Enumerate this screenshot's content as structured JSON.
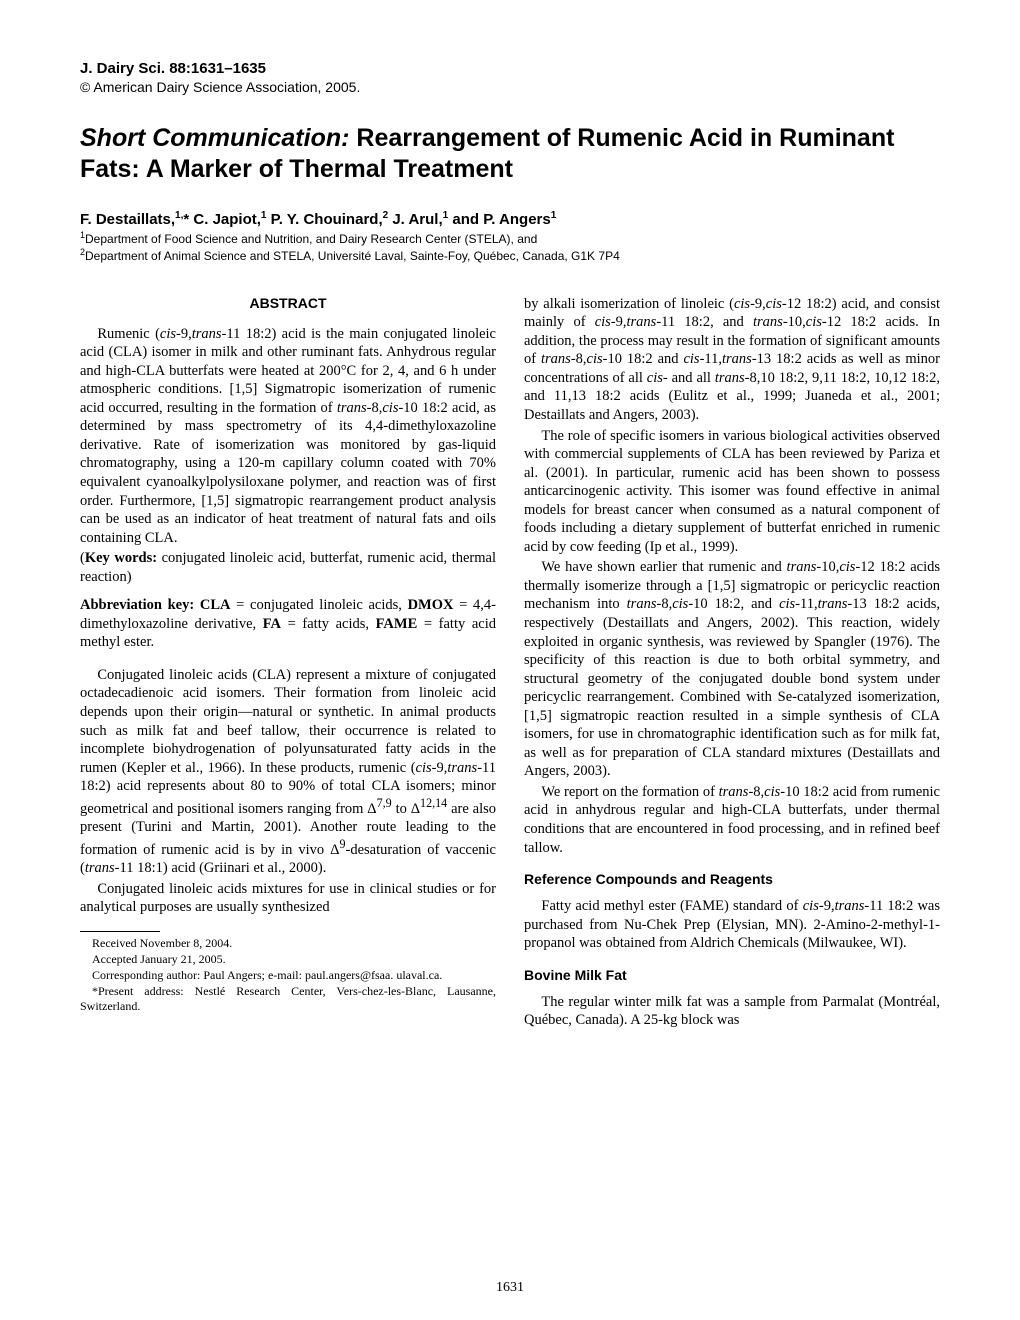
{
  "header": {
    "journal": "J. Dairy Sci. 88:1631–1635",
    "copyright": "© American Dairy Science Association, 2005."
  },
  "title": {
    "prefix": "Short Communication:",
    "main": " Rearrangement of Rumenic Acid in Ruminant Fats: A Marker of Thermal Treatment"
  },
  "authors_html": "F. Destaillats,<sup>1,</sup>* C. Japiot,<sup>1</sup> P. Y. Chouinard,<sup>2</sup> J. Arul,<sup>1</sup> and P. Angers<sup>1</sup>",
  "affiliations_html": "<sup>1</sup>Department of Food Science and Nutrition, and Dairy Research Center (STELA), and<br><sup>2</sup>Department of Animal Science and STELA, Université Laval, Sainte-Foy, Québec, Canada, G1K 7P4",
  "abstract_heading": "ABSTRACT",
  "abstract_para_html": "Rumenic (<em>cis</em>-9,<em>trans</em>-11 18:2) acid is the main conjugated linoleic acid (CLA) isomer in milk and other ruminant fats. Anhydrous regular and high-CLA butterfats were heated at 200°C for 2, 4, and 6 h under atmospheric conditions. [1,5] Sigmatropic isomerization of rumenic acid occurred, resulting in the formation of <em>trans</em>-8,<em>cis</em>-10 18:2 acid, as determined by mass spectrometry of its 4,4-dimethyloxazoline derivative. Rate of isomerization was monitored by gas-liquid chromatography, using a 120-m capillary column coated with 70% equivalent cyanoalkylpolysiloxane polymer, and reaction was of first order. Furthermore, [1,5] sigmatropic rearrangement product analysis can be used as an indicator of heat treatment of natural fats and oils containing CLA.",
  "keywords_html": "(<strong>Key words:</strong> conjugated linoleic acid, butterfat, rumenic acid, thermal reaction)",
  "abbrev_html": "<strong>Abbreviation key: CLA</strong> = conjugated linoleic acids, <strong>DMOX</strong> = 4,4-dimethyloxazoline derivative, <strong>FA</strong> = fatty acids, <strong>FAME</strong> = fatty acid methyl ester.",
  "left_body": {
    "p1_html": "Conjugated linoleic acids (CLA) represent a mixture of conjugated octadecadienoic acid isomers. Their formation from linoleic acid depends upon their origin—natural or synthetic. In animal products such as milk fat and beef tallow, their occurrence is related to incomplete biohydrogenation of polyunsaturated fatty acids in the rumen (Kepler et al., 1966). In these products, rumenic (<em>cis</em>-9,<em>trans</em>-11 18:2) acid represents about 80 to 90% of total CLA isomers; minor geometrical and positional isomers ranging from Δ<sup>7,9</sup> to Δ<sup>12,14</sup> are also present (Turini and Martin, 2001). Another route leading to the formation of rumenic acid is by in vivo Δ<sup>9</sup>-desaturation of vaccenic (<em>trans</em>-11 18:1) acid (Griinari et al., 2000).",
    "p2_html": "Conjugated linoleic acids mixtures for use in clinical studies or for analytical purposes are usually synthesized"
  },
  "footnotes": {
    "f1": "Received November 8, 2004.",
    "f2": "Accepted January 21, 2005.",
    "f3": "Corresponding author: Paul Angers; e-mail: paul.angers@fsaa. ulaval.ca.",
    "f4": "*Present address: Nestlé Research Center, Vers-chez-les-Blanc, Lausanne, Switzerland."
  },
  "right_body": {
    "p1_html": "by alkali isomerization of linoleic (<em>cis</em>-9,<em>cis</em>-12 18:2) acid, and consist mainly of <em>cis</em>-9,<em>trans</em>-11 18:2, and <em>trans</em>-10,<em>cis</em>-12 18:2 acids. In addition, the process may result in the formation of significant amounts of <em>trans</em>-8,<em>cis</em>-10 18:2 and <em>cis</em>-11,<em>trans</em>-13 18:2 acids as well as minor concentrations of all <em>cis</em>- and all <em>trans</em>-8,10 18:2, 9,11 18:2, 10,12 18:2, and 11,13 18:2 acids (Eulitz et al., 1999; Juaneda et al., 2001; Destaillats and Angers, 2003).",
    "p2_html": "The role of specific isomers in various biological activities observed with commercial supplements of CLA has been reviewed by Pariza et al. (2001). In particular, rumenic acid has been shown to possess anticarcinogenic activity. This isomer was found effective in animal models for breast cancer when consumed as a natural component of foods including a dietary supplement of butterfat enriched in rumenic acid by cow feeding (Ip et al., 1999).",
    "p3_html": "We have shown earlier that rumenic and <em>trans</em>-10,<em>cis</em>-12 18:2 acids thermally isomerize through a [1,5] sigmatropic or pericyclic reaction mechanism into <em>trans</em>-8,<em>cis</em>-10 18:2, and <em>cis</em>-11,<em>trans</em>-13 18:2 acids, respectively (Destaillats and Angers, 2002). This reaction, widely exploited in organic synthesis, was reviewed by Spangler (1976). The specificity of this reaction is due to both orbital symmetry, and structural geometry of the conjugated double bond system under pericyclic rearrangement. Combined with Se-catalyzed isomerization, [1,5] sigmatropic reaction resulted in a simple synthesis of CLA isomers, for use in chromatographic identification such as for milk fat, as well as for preparation of CLA standard mixtures (Destaillats and Angers, 2003).",
    "p4_html": "We report on the formation of <em>trans</em>-8,<em>cis</em>-10 18:2 acid from rumenic acid in anhydrous regular and high-CLA butterfats, under thermal conditions that are encountered in food processing, and in refined beef tallow."
  },
  "subhead1": "Reference Compounds and Reagents",
  "sub1_para_html": "Fatty acid methyl ester (FAME) standard of <em>cis</em>-9,<em>trans</em>-11 18:2 was purchased from Nu-Chek Prep (Elysian, MN). 2-Amino-2-methyl-1-propanol was obtained from Aldrich Chemicals (Milwaukee, WI).",
  "subhead2": "Bovine Milk Fat",
  "sub2_para_html": "The regular winter milk fat was a sample from Parmalat (Montréal, Québec, Canada). A 25-kg block was",
  "pagenum": "1631"
}
